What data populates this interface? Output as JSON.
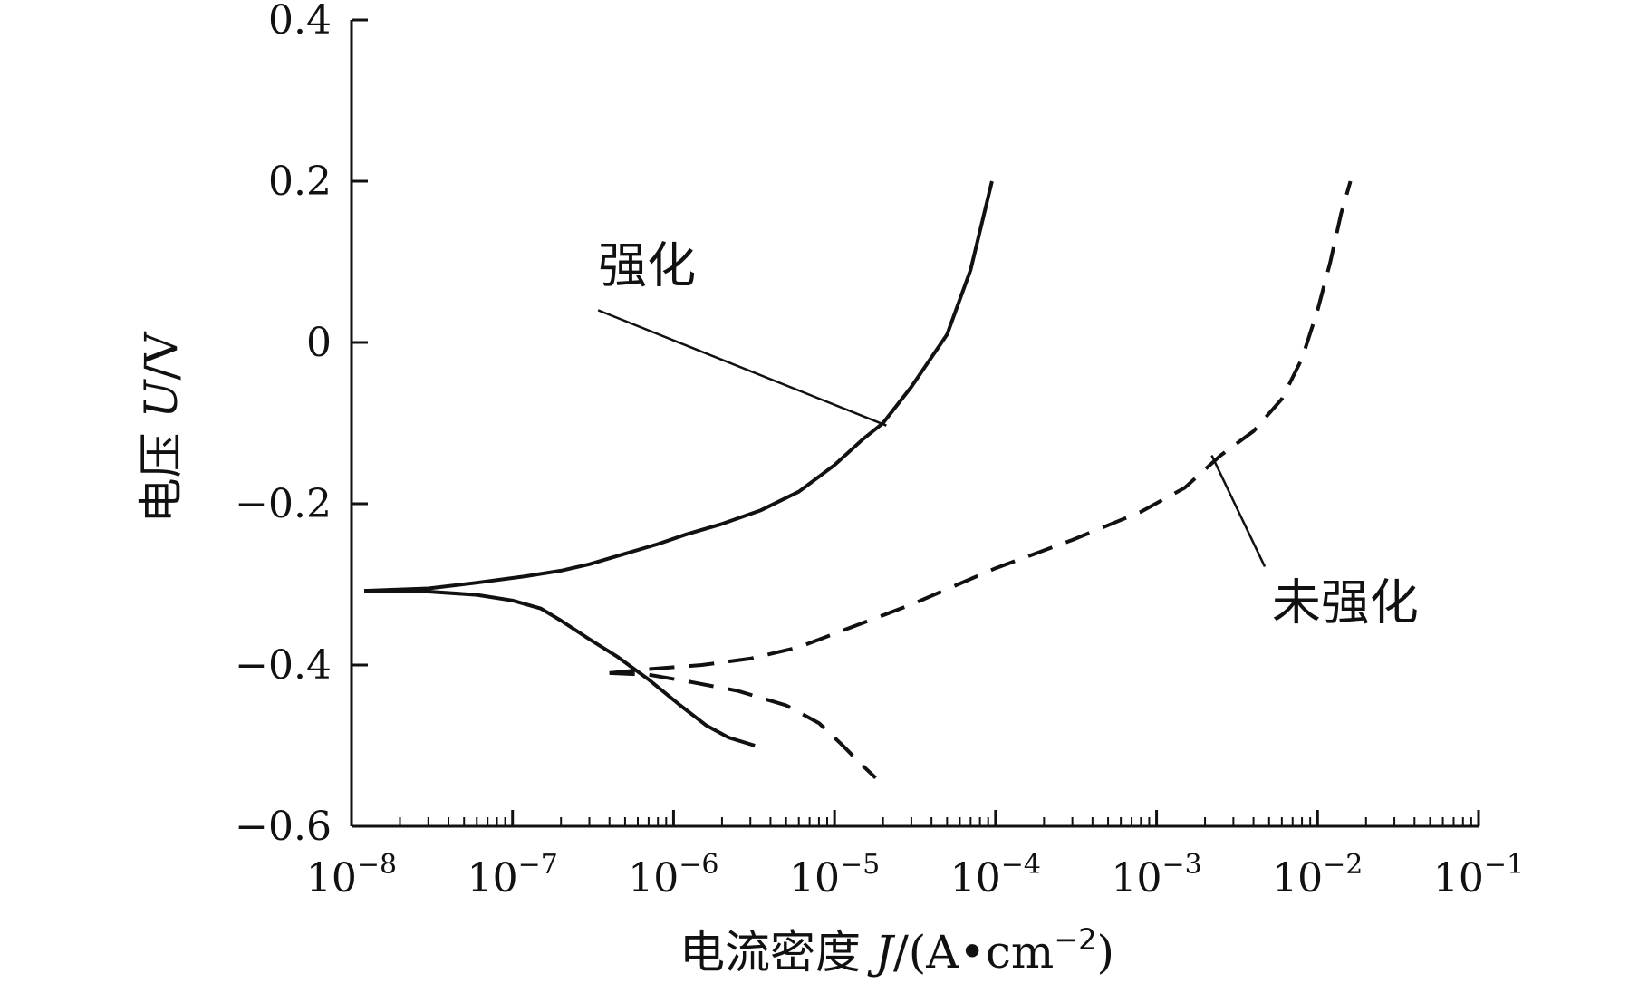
{
  "chart_data": {
    "type": "line",
    "xscale": "log",
    "xlim": [
      1e-08,
      0.1
    ],
    "ylim": [
      -0.6,
      0.4
    ],
    "grid": false,
    "xlabel": {
      "prefix": "电流密度 ",
      "symbol": "J",
      "unit": "/(A•cm",
      "exp": "−2",
      "close": ")"
    },
    "ylabel": {
      "prefix": "电压 ",
      "symbol": "U",
      "unit": "/V"
    },
    "yticks": [
      {
        "value": 0.4,
        "label": "0.4"
      },
      {
        "value": 0.2,
        "label": "0.2"
      },
      {
        "value": 0,
        "label": "0"
      },
      {
        "value": -0.2,
        "label": "−0.2"
      },
      {
        "value": -0.4,
        "label": "−0.4"
      },
      {
        "value": -0.6,
        "label": "−0.6"
      }
    ],
    "xticks": [
      {
        "value": 1e-08,
        "base": "10",
        "exp": "−8"
      },
      {
        "value": 1e-07,
        "base": "10",
        "exp": "−7"
      },
      {
        "value": 1e-06,
        "base": "10",
        "exp": "−6"
      },
      {
        "value": 1e-05,
        "base": "10",
        "exp": "−5"
      },
      {
        "value": 0.0001,
        "base": "10",
        "exp": "−4"
      },
      {
        "value": 0.001,
        "base": "10",
        "exp": "−3"
      },
      {
        "value": 0.01,
        "base": "10",
        "exp": "−2"
      },
      {
        "value": 0.1,
        "base": "10",
        "exp": "−1"
      }
    ],
    "series": [
      {
        "name": "强化",
        "style": "solid",
        "color": "#111111",
        "branches": [
          {
            "branch": "anodic",
            "points": [
              [
                1.2e-08,
                -0.308
              ],
              [
                3e-08,
                -0.305
              ],
              [
                6e-08,
                -0.298
              ],
              [
                1.2e-07,
                -0.29
              ],
              [
                2e-07,
                -0.283
              ],
              [
                3e-07,
                -0.275
              ],
              [
                5e-07,
                -0.262
              ],
              [
                8e-07,
                -0.25
              ],
              [
                1.2e-06,
                -0.238
              ],
              [
                2e-06,
                -0.225
              ],
              [
                3.5e-06,
                -0.208
              ],
              [
                6e-06,
                -0.185
              ],
              [
                1e-05,
                -0.152
              ],
              [
                1.5e-05,
                -0.12
              ],
              [
                2e-05,
                -0.1
              ],
              [
                3e-05,
                -0.055
              ],
              [
                5e-05,
                0.01
              ],
              [
                7e-05,
                0.09
              ],
              [
                9.5e-05,
                0.2
              ]
            ]
          },
          {
            "branch": "cathodic",
            "points": [
              [
                1.2e-08,
                -0.308
              ],
              [
                3e-08,
                -0.309
              ],
              [
                6e-08,
                -0.313
              ],
              [
                1e-07,
                -0.32
              ],
              [
                1.5e-07,
                -0.33
              ],
              [
                2e-07,
                -0.345
              ],
              [
                3e-07,
                -0.368
              ],
              [
                4.5e-07,
                -0.39
              ],
              [
                7e-07,
                -0.418
              ],
              [
                1.1e-06,
                -0.45
              ],
              [
                1.6e-06,
                -0.475
              ],
              [
                2.2e-06,
                -0.49
              ],
              [
                3.2e-06,
                -0.5
              ]
            ]
          }
        ]
      },
      {
        "name": "未强化",
        "style": "dashed",
        "color": "#111111",
        "branches": [
          {
            "branch": "anodic",
            "points": [
              [
                4e-07,
                -0.41
              ],
              [
                7e-07,
                -0.405
              ],
              [
                1.5e-06,
                -0.4
              ],
              [
                3e-06,
                -0.392
              ],
              [
                6e-06,
                -0.378
              ],
              [
                1.2e-05,
                -0.355
              ],
              [
                3e-05,
                -0.325
              ],
              [
                0.0001,
                -0.28
              ],
              [
                0.0003,
                -0.245
              ],
              [
                0.0008,
                -0.21
              ],
              [
                0.0015,
                -0.18
              ],
              [
                0.0025,
                -0.14
              ],
              [
                0.004,
                -0.11
              ],
              [
                0.006,
                -0.07
              ],
              [
                0.008,
                -0.02
              ],
              [
                0.01,
                0.04
              ],
              [
                0.012,
                0.1
              ],
              [
                0.014,
                0.16
              ],
              [
                0.016,
                0.2
              ]
            ]
          },
          {
            "branch": "cathodic",
            "points": [
              [
                4e-07,
                -0.41
              ],
              [
                7e-07,
                -0.412
              ],
              [
                1.2e-06,
                -0.42
              ],
              [
                2.5e-06,
                -0.432
              ],
              [
                5e-06,
                -0.45
              ],
              [
                8e-06,
                -0.472
              ],
              [
                1.1e-05,
                -0.498
              ],
              [
                1.5e-05,
                -0.525
              ],
              [
                1.8e-05,
                -0.54
              ]
            ]
          }
        ]
      }
    ],
    "annotations": [
      {
        "text": "强化",
        "series": "强化",
        "text_at": [
          3.4e-07,
          0.075
        ],
        "line_from": [
          3.4e-07,
          0.04
        ],
        "line_to": [
          2.1e-05,
          -0.103
        ]
      },
      {
        "text": "未强化",
        "series": "未强化",
        "text_at": [
          0.0052,
          -0.343
        ],
        "line_from": [
          0.0022,
          -0.14
        ],
        "line_to": [
          0.0047,
          -0.278
        ]
      }
    ]
  }
}
